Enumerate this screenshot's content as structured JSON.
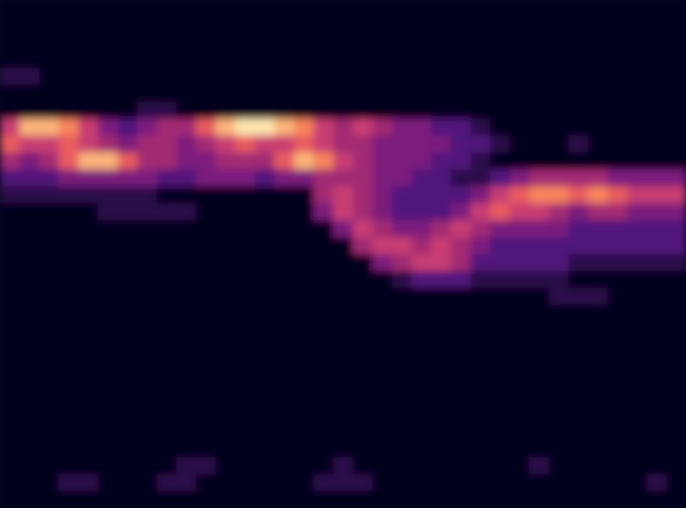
{
  "chart_data": {
    "type": "heatmap",
    "tick_labels": false,
    "zlim": [
      0,
      9
    ],
    "cells": [
      [
        0,
        0,
        0,
        0,
        0,
        0,
        0,
        0,
        0,
        0,
        0,
        0,
        0,
        0,
        0,
        0,
        0,
        0,
        0,
        0,
        0,
        0,
        0,
        0,
        0,
        0,
        0,
        0,
        0,
        0,
        0,
        0,
        0,
        0,
        0
      ],
      [
        0,
        0,
        0,
        0,
        0,
        0,
        0,
        0,
        0,
        0,
        0,
        0,
        0,
        0,
        0,
        0,
        0,
        0,
        0,
        0,
        0,
        0,
        0,
        0,
        0,
        0,
        0,
        0,
        0,
        0,
        0,
        0,
        0,
        0,
        0
      ],
      [
        0,
        0,
        0,
        0,
        0,
        0,
        0,
        0,
        0,
        0,
        0,
        0,
        0,
        0,
        0,
        0,
        0,
        0,
        0,
        0,
        0,
        0,
        0,
        0,
        0,
        0,
        0,
        0,
        0,
        0,
        0,
        0,
        0,
        0,
        0
      ],
      [
        0,
        0,
        0,
        0,
        0,
        0,
        0,
        0,
        0,
        0,
        0,
        0,
        0,
        0,
        0,
        0,
        0,
        0,
        0,
        0,
        0,
        0,
        0,
        0,
        0,
        0,
        0,
        0,
        0,
        0,
        0,
        0,
        0,
        0,
        0
      ],
      [
        1,
        1,
        0,
        0,
        0,
        0,
        0,
        0,
        0,
        0,
        0,
        0,
        0,
        0,
        0,
        0,
        0,
        0,
        0,
        0,
        0,
        0,
        0,
        0,
        0,
        0,
        0,
        0,
        0,
        0,
        0,
        0,
        0,
        0,
        0
      ],
      [
        0,
        0,
        0,
        0,
        0,
        0,
        0,
        0,
        0,
        0,
        0,
        0,
        0,
        0,
        0,
        0,
        0,
        0,
        0,
        0,
        0,
        0,
        0,
        0,
        0,
        0,
        0,
        0,
        0,
        0,
        0,
        0,
        0,
        0,
        0
      ],
      [
        0,
        0,
        0,
        0,
        0,
        0,
        0,
        1,
        1,
        0,
        0,
        0,
        0,
        0,
        0,
        0,
        0,
        0,
        0,
        0,
        0,
        0,
        0,
        0,
        0,
        0,
        0,
        0,
        0,
        0,
        0,
        0,
        0,
        0,
        0
      ],
      [
        5,
        8,
        8,
        7,
        5,
        3,
        2,
        3,
        4,
        4,
        6,
        8,
        9,
        9,
        8,
        7,
        5,
        4,
        5,
        4,
        3,
        3,
        2,
        2,
        1,
        0,
        0,
        0,
        0,
        0,
        0,
        0,
        0,
        0,
        0
      ],
      [
        6,
        5,
        5,
        6,
        5,
        4,
        3,
        4,
        4,
        3,
        4,
        5,
        6,
        5,
        5,
        6,
        5,
        4,
        4,
        3,
        3,
        3,
        3,
        2,
        2,
        1,
        0,
        0,
        0,
        1,
        0,
        0,
        0,
        0,
        0
      ],
      [
        4,
        3,
        4,
        6,
        8,
        8,
        6,
        4,
        4,
        3,
        3,
        4,
        4,
        4,
        6,
        8,
        7,
        5,
        4,
        3,
        3,
        3,
        2,
        2,
        1,
        0,
        0,
        0,
        0,
        0,
        0,
        0,
        0,
        0,
        0
      ],
      [
        2,
        2,
        2,
        3,
        3,
        3,
        3,
        3,
        2,
        2,
        3,
        3,
        3,
        2,
        3,
        3,
        4,
        4,
        4,
        3,
        3,
        2,
        2,
        1,
        1,
        2,
        3,
        4,
        4,
        4,
        4,
        3,
        3,
        3,
        3
      ],
      [
        1,
        1,
        1,
        1,
        1,
        1,
        1,
        1,
        0,
        0,
        0,
        0,
        0,
        0,
        0,
        0,
        4,
        5,
        4,
        3,
        2,
        2,
        2,
        2,
        3,
        5,
        6,
        7,
        7,
        6,
        7,
        6,
        5,
        5,
        5
      ],
      [
        0,
        0,
        0,
        0,
        0,
        1,
        1,
        1,
        1,
        1,
        0,
        0,
        0,
        0,
        0,
        0,
        3,
        5,
        4,
        3,
        2,
        2,
        2,
        3,
        5,
        6,
        5,
        5,
        4,
        3,
        4,
        4,
        3,
        3,
        3
      ],
      [
        0,
        0,
        0,
        0,
        0,
        0,
        0,
        0,
        0,
        0,
        0,
        0,
        0,
        0,
        0,
        0,
        0,
        3,
        5,
        4,
        3,
        3,
        4,
        5,
        4,
        3,
        3,
        3,
        3,
        2,
        2,
        2,
        2,
        2,
        2
      ],
      [
        0,
        0,
        0,
        0,
        0,
        0,
        0,
        0,
        0,
        0,
        0,
        0,
        0,
        0,
        0,
        0,
        0,
        0,
        4,
        5,
        5,
        4,
        5,
        4,
        3,
        2,
        2,
        2,
        2,
        2,
        2,
        2,
        2,
        2,
        2
      ],
      [
        0,
        0,
        0,
        0,
        0,
        0,
        0,
        0,
        0,
        0,
        0,
        0,
        0,
        0,
        0,
        0,
        0,
        0,
        0,
        3,
        4,
        5,
        5,
        4,
        2,
        2,
        2,
        2,
        2,
        1,
        1,
        1,
        1,
        1,
        1
      ],
      [
        0,
        0,
        0,
        0,
        0,
        0,
        0,
        0,
        0,
        0,
        0,
        0,
        0,
        0,
        0,
        0,
        0,
        0,
        0,
        0,
        1,
        2,
        2,
        2,
        1,
        1,
        1,
        1,
        1,
        0,
        0,
        0,
        0,
        0,
        0
      ],
      [
        0,
        0,
        0,
        0,
        0,
        0,
        0,
        0,
        0,
        0,
        0,
        0,
        0,
        0,
        0,
        0,
        0,
        0,
        0,
        0,
        0,
        0,
        0,
        0,
        0,
        0,
        0,
        0,
        1,
        1,
        1,
        0,
        0,
        0,
        0
      ],
      [
        0,
        0,
        0,
        0,
        0,
        0,
        0,
        0,
        0,
        0,
        0,
        0,
        0,
        0,
        0,
        0,
        0,
        0,
        0,
        0,
        0,
        0,
        0,
        0,
        0,
        0,
        0,
        0,
        0,
        0,
        0,
        0,
        0,
        0,
        0
      ],
      [
        0,
        0,
        0,
        0,
        0,
        0,
        0,
        0,
        0,
        0,
        0,
        0,
        0,
        0,
        0,
        0,
        0,
        0,
        0,
        0,
        0,
        0,
        0,
        0,
        0,
        0,
        0,
        0,
        0,
        0,
        0,
        0,
        0,
        0,
        0
      ],
      [
        0,
        0,
        0,
        0,
        0,
        0,
        0,
        0,
        0,
        0,
        0,
        0,
        0,
        0,
        0,
        0,
        0,
        0,
        0,
        0,
        0,
        0,
        0,
        0,
        0,
        0,
        0,
        0,
        0,
        0,
        0,
        0,
        0,
        0,
        0
      ],
      [
        0,
        0,
        0,
        0,
        0,
        0,
        0,
        0,
        0,
        0,
        0,
        0,
        0,
        0,
        0,
        0,
        0,
        0,
        0,
        0,
        0,
        0,
        0,
        0,
        0,
        0,
        0,
        0,
        0,
        0,
        0,
        0,
        0,
        0,
        0
      ],
      [
        0,
        0,
        0,
        0,
        0,
        0,
        0,
        0,
        0,
        0,
        0,
        0,
        0,
        0,
        0,
        0,
        0,
        0,
        0,
        0,
        0,
        0,
        0,
        0,
        0,
        0,
        0,
        0,
        0,
        0,
        0,
        0,
        0,
        0,
        0
      ],
      [
        0,
        0,
        0,
        0,
        0,
        0,
        0,
        0,
        0,
        0,
        0,
        0,
        0,
        0,
        0,
        0,
        0,
        0,
        0,
        0,
        0,
        0,
        0,
        0,
        0,
        0,
        0,
        0,
        0,
        0,
        0,
        0,
        0,
        0,
        0
      ],
      [
        0,
        0,
        0,
        0,
        0,
        0,
        0,
        0,
        0,
        0,
        0,
        0,
        0,
        0,
        0,
        0,
        0,
        0,
        0,
        0,
        0,
        0,
        0,
        0,
        0,
        0,
        0,
        0,
        0,
        0,
        0,
        0,
        0,
        0,
        0
      ],
      [
        0,
        0,
        0,
        0,
        0,
        0,
        0,
        0,
        0,
        0,
        0,
        0,
        0,
        0,
        0,
        0,
        0,
        0,
        0,
        0,
        0,
        0,
        0,
        0,
        0,
        0,
        0,
        0,
        0,
        0,
        0,
        0,
        0,
        0,
        0
      ],
      [
        0,
        0,
        0,
        0,
        0,
        0,
        0,
        0,
        0,
        0,
        0,
        0,
        0,
        0,
        0,
        0,
        0,
        0,
        0,
        0,
        0,
        0,
        0,
        0,
        0,
        0,
        0,
        0,
        0,
        0,
        0,
        0,
        0,
        0,
        0
      ],
      [
        0,
        0,
        0,
        0,
        0,
        0,
        0,
        0,
        0,
        1,
        1,
        0,
        0,
        0,
        0,
        0,
        0,
        1,
        0,
        0,
        0,
        0,
        0,
        0,
        0,
        0,
        0,
        1,
        0,
        0,
        0,
        0,
        0,
        0,
        0
      ],
      [
        0,
        0,
        0,
        1,
        1,
        0,
        0,
        0,
        1,
        1,
        0,
        0,
        0,
        0,
        0,
        0,
        1,
        1,
        1,
        0,
        0,
        0,
        0,
        0,
        0,
        0,
        0,
        0,
        0,
        0,
        0,
        0,
        0,
        1,
        0
      ],
      [
        0,
        0,
        0,
        0,
        0,
        0,
        0,
        0,
        0,
        0,
        0,
        0,
        0,
        0,
        0,
        0,
        0,
        0,
        0,
        0,
        0,
        0,
        0,
        0,
        0,
        0,
        0,
        0,
        0,
        0,
        0,
        0,
        0,
        0,
        0
      ]
    ]
  }
}
